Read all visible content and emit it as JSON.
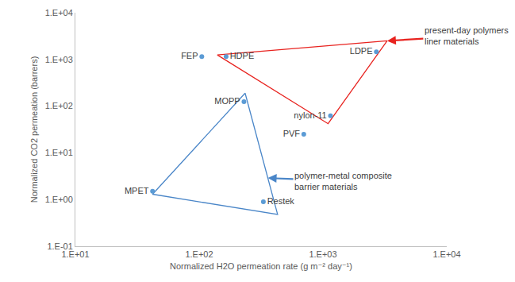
{
  "chart_data": {
    "type": "scatter",
    "x_label": "Normalized H2O permeation rate (g m⁻² day⁻¹)",
    "y_label": "Normalized CO2 permeation (barrers)",
    "log": true,
    "grid": false,
    "xlim": [
      10,
      10000
    ],
    "ylim": [
      0.1,
      10000
    ],
    "xticks": [
      {
        "value": 10,
        "label": "1.E+01"
      },
      {
        "value": 100,
        "label": "1.E+02"
      },
      {
        "value": 1000,
        "label": "1.E+03"
      },
      {
        "value": 10000,
        "label": "1.E+04"
      }
    ],
    "yticks": [
      {
        "value": 0.1,
        "label": "1.E-01"
      },
      {
        "value": 1,
        "label": "1.E+00"
      },
      {
        "value": 10,
        "label": "1.E+01"
      },
      {
        "value": 100,
        "label": "1.E+02"
      },
      {
        "value": 1000,
        "label": "1.E+03"
      },
      {
        "value": 10000,
        "label": "1.E+04"
      }
    ],
    "points": {
      "labels": [
        "FEP",
        "HDPE",
        "LDPE",
        "MOPP",
        "nylon-11",
        "PVF",
        "MPET",
        "Restek"
      ],
      "x": [
        105,
        165,
        2700,
        230,
        1150,
        700,
        42,
        330
      ],
      "values": [
        1150,
        1150,
        1450,
        125,
        62,
        25,
        1.5,
        0.9
      ],
      "color": "#5b9bd5",
      "marker": "circle"
    },
    "regions": [
      {
        "name": "present-day polymers\nliner materials",
        "color": "#e8231f",
        "line_style": "solid",
        "x": [
          140,
          3300,
          1100
        ],
        "values": [
          1250,
          2500,
          42
        ]
      },
      {
        "name": "polymer-metal composite\nbarrier materials",
        "color": "#4a86c8",
        "line_style": "solid",
        "x": [
          235,
          430,
          42
        ],
        "values": [
          190,
          0.48,
          1.3
        ]
      }
    ]
  }
}
